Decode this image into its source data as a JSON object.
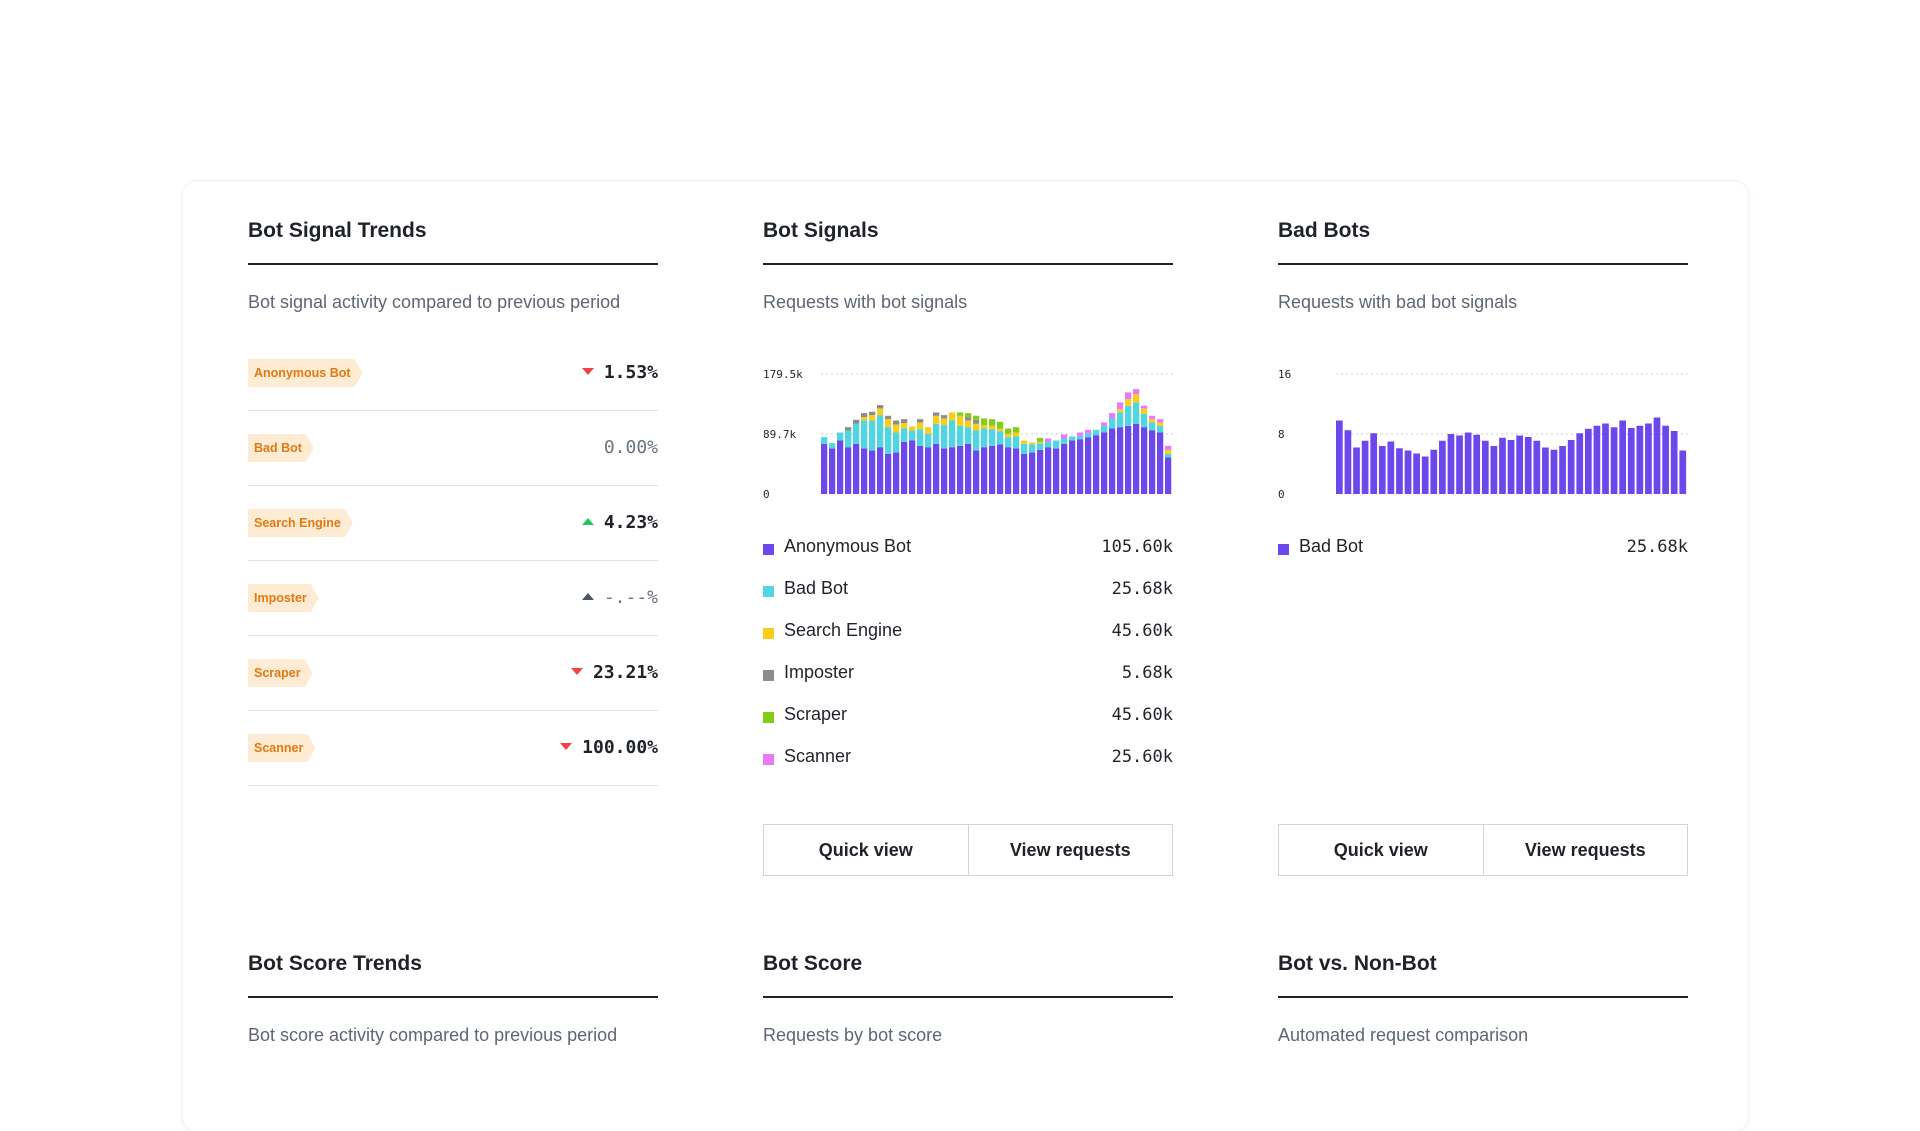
{
  "panels": {
    "trends": {
      "title": "Bot Signal Trends",
      "subtitle": "Bot signal activity compared to previous period",
      "rows": [
        {
          "tag": "Anonymous Bot",
          "value": "1.53%",
          "direction": "down",
          "muted": false
        },
        {
          "tag": "Bad Bot",
          "value": "0.00%",
          "direction": "none",
          "muted": true
        },
        {
          "tag": "Search Engine",
          "value": "4.23%",
          "direction": "up-green",
          "muted": false
        },
        {
          "tag": "Imposter",
          "value": "-.--%",
          "direction": "up-gray",
          "muted": true
        },
        {
          "tag": "Scraper",
          "value": "23.21%",
          "direction": "down",
          "muted": false
        },
        {
          "tag": "Scanner",
          "value": "100.00%",
          "direction": "down",
          "muted": false
        }
      ]
    },
    "signals": {
      "title": "Bot Signals",
      "subtitle": "Requests with bot signals",
      "legend": [
        {
          "name": "Anonymous Bot",
          "value": "105.60k",
          "color": "#6c47ec"
        },
        {
          "name": "Bad Bot",
          "value": "25.68k",
          "color": "#4fd6e0"
        },
        {
          "name": "Search Engine",
          "value": "45.60k",
          "color": "#f7cf1b"
        },
        {
          "name": "Imposter",
          "value": "5.68k",
          "color": "#8c8c8c"
        },
        {
          "name": "Scraper",
          "value": "45.60k",
          "color": "#84cc16"
        },
        {
          "name": "Scanner",
          "value": "25.60k",
          "color": "#e879f9"
        }
      ],
      "buttons": {
        "quick": "Quick view",
        "requests": "View requests"
      }
    },
    "badbots": {
      "title": "Bad Bots",
      "subtitle": "Requests with bad bot signals",
      "legend": [
        {
          "name": "Bad Bot",
          "value": "25.68k",
          "color": "#6c47ec"
        }
      ],
      "buttons": {
        "quick": "Quick view",
        "requests": "View requests"
      }
    },
    "scoretrends": {
      "title": "Bot Score Trends",
      "subtitle": "Bot score activity compared to previous period"
    },
    "score": {
      "title": "Bot Score",
      "subtitle": "Requests by bot score"
    },
    "botvs": {
      "title": "Bot vs. Non-Bot",
      "subtitle": "Automated request comparison"
    }
  },
  "chart_data": [
    {
      "type": "bar",
      "stacked": true,
      "ylim": [
        0,
        179.5
      ],
      "yticks": [
        "179.5k",
        "89.7k",
        "0"
      ],
      "ytick_values": [
        179.5,
        89.7,
        0
      ],
      "grid": true,
      "series": [
        {
          "name": "Anonymous Bot",
          "color": "#6c47ec",
          "values": [
            75,
            68,
            80,
            70,
            75,
            68,
            65,
            70,
            60,
            62,
            78,
            80,
            72,
            70,
            75,
            68,
            70,
            72,
            75,
            65,
            70,
            72,
            74,
            70,
            68,
            60,
            62,
            66,
            70,
            68,
            75,
            80,
            82,
            85,
            88,
            92,
            98,
            100,
            102,
            105,
            100,
            95,
            92,
            55
          ]
        },
        {
          "name": "Bad Bot",
          "color": "#4fd6e0",
          "values": [
            10,
            8,
            12,
            25,
            30,
            42,
            45,
            48,
            40,
            30,
            20,
            15,
            25,
            20,
            30,
            35,
            40,
            30,
            25,
            30,
            28,
            25,
            20,
            15,
            18,
            15,
            12,
            10,
            8,
            12,
            8,
            6,
            5,
            6,
            8,
            10,
            15,
            22,
            30,
            32,
            20,
            12,
            10,
            5
          ]
        },
        {
          "name": "Search Engine",
          "color": "#f7cf1b",
          "values": [
            0,
            0,
            0,
            0,
            0,
            5,
            8,
            10,
            12,
            12,
            8,
            6,
            10,
            10,
            12,
            10,
            12,
            15,
            10,
            10,
            5,
            5,
            4,
            5,
            6,
            5,
            3,
            2,
            0,
            0,
            0,
            0,
            0,
            0,
            0,
            0,
            0,
            5,
            10,
            12,
            8,
            5,
            5,
            6
          ]
        },
        {
          "name": "Imposter",
          "color": "#8c8c8c",
          "values": [
            0,
            0,
            0,
            5,
            6,
            6,
            5,
            5,
            5,
            6,
            6,
            0,
            5,
            0,
            5,
            5,
            0,
            0,
            5,
            6,
            0,
            0,
            0,
            0,
            0,
            0,
            0,
            0,
            0,
            0,
            0,
            0,
            0,
            0,
            0,
            0,
            0,
            0,
            0,
            0,
            0,
            0,
            0,
            0
          ]
        },
        {
          "name": "Scraper",
          "color": "#84cc16",
          "values": [
            0,
            0,
            0,
            0,
            0,
            0,
            0,
            0,
            0,
            0,
            0,
            0,
            0,
            0,
            0,
            0,
            0,
            5,
            6,
            6,
            10,
            10,
            10,
            8,
            8,
            0,
            0,
            6,
            0,
            0,
            0,
            0,
            0,
            0,
            0,
            0,
            0,
            0,
            0,
            0,
            0,
            0,
            0,
            0
          ]
        },
        {
          "name": "Scanner",
          "color": "#e879f9",
          "values": [
            0,
            0,
            0,
            0,
            0,
            0,
            0,
            0,
            0,
            0,
            0,
            0,
            0,
            0,
            0,
            0,
            0,
            0,
            0,
            0,
            0,
            0,
            0,
            0,
            0,
            0,
            0,
            0,
            5,
            0,
            6,
            0,
            5,
            5,
            0,
            5,
            8,
            10,
            10,
            8,
            4,
            5,
            5,
            6
          ]
        }
      ]
    },
    {
      "type": "bar",
      "ylim": [
        0,
        16
      ],
      "yticks": [
        "16",
        "8",
        "0"
      ],
      "ytick_values": [
        16,
        8,
        0
      ],
      "grid": true,
      "series": [
        {
          "name": "Bad Bot",
          "color": "#6c47ec",
          "values": [
            9.8,
            8.5,
            6.2,
            7.1,
            8.1,
            6.4,
            7.0,
            6.1,
            5.8,
            5.4,
            5.0,
            5.9,
            7.1,
            8.0,
            7.8,
            8.2,
            7.9,
            7.1,
            6.4,
            7.5,
            7.2,
            7.8,
            7.6,
            7.1,
            6.2,
            5.9,
            6.4,
            7.2,
            8.1,
            8.7,
            9.1,
            9.4,
            8.9,
            9.8,
            8.8,
            9.1,
            9.4,
            10.2,
            9.1,
            8.4,
            5.8
          ]
        }
      ]
    }
  ]
}
